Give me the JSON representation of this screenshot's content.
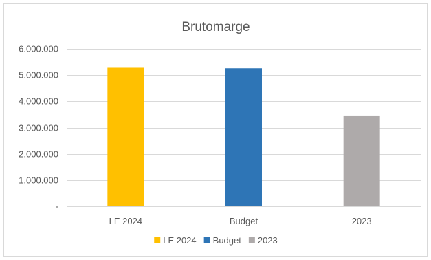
{
  "chart_data": {
    "type": "bar",
    "title": "Brutomarge",
    "categories": [
      "LE 2024",
      "Budget",
      "2023"
    ],
    "values": [
      5280000,
      5260000,
      3460000
    ],
    "colors": [
      "#ffc000",
      "#2e75b6",
      "#aeaaaa"
    ],
    "y_ticks": [
      0,
      1000000,
      2000000,
      3000000,
      4000000,
      5000000,
      6000000
    ],
    "y_tick_labels": [
      "-",
      "1.000.000",
      "2.000.000",
      "3.000.000",
      "4.000.000",
      "5.000.000",
      "6.000.000"
    ],
    "ylim": [
      0,
      6000000
    ],
    "grid": true,
    "legend": {
      "position": "bottom",
      "entries": [
        "LE 2024",
        "Budget",
        "2023"
      ]
    },
    "gridline_color": "#d9d9d9"
  }
}
